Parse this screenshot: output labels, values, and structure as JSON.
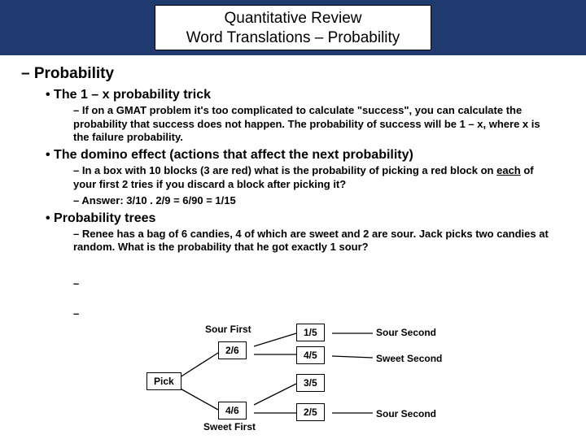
{
  "header": {
    "line1": "Quantitative Review",
    "line2": "Word Translations – Probability"
  },
  "section_title": "– Probability",
  "bullets": [
    {
      "title": "• The 1 – x probability trick",
      "subs": [
        "– If on a GMAT problem it's too complicated to calculate \"success\", you can calculate the probability that success does not happen. The probability of success will be 1 – x, where x is the failure probability."
      ]
    },
    {
      "title": "• The domino effect (actions that affect the next probability)",
      "subs": [
        "– In a box with 10 blocks (3 are red) what is the probability of picking a red block on each of your first 2 tries if you discard a block after picking it?",
        "– Answer: 3/10 . 2/9 = 6/90 = 1/15"
      ],
      "underline_word": "each"
    },
    {
      "title": "• Probability trees",
      "subs": [
        "– Renee has a bag of 6 candies, 4 of which are sweet and 2 are sour. Jack picks two candies at random. What is the probability that he got exactly 1 sour?"
      ]
    }
  ],
  "tree": {
    "root": "Pick",
    "branch1": {
      "edge": "2/6",
      "label": "Sour First"
    },
    "branch2": {
      "edge": "4/6",
      "label": "Sweet First"
    },
    "leaf1": {
      "edge": "1/5",
      "label": "Sour Second"
    },
    "leaf2": {
      "edge": "4/5",
      "label": "Sweet Second"
    },
    "leaf3": {
      "edge": "3/5"
    },
    "leaf4": {
      "edge": "2/5",
      "label": "Sour Second"
    },
    "colors": {
      "line": "#000000",
      "box_border": "#000000"
    },
    "font_size": 12
  }
}
